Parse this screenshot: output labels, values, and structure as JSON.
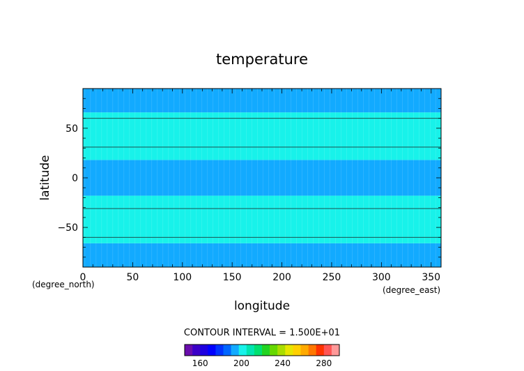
{
  "chart_data": {
    "type": "heatmap",
    "title": "temperature",
    "xlabel": "longitude",
    "ylabel": "latitude",
    "x_units": "(degree_east)",
    "y_units": "(degree_north)",
    "xlim": [
      0,
      360
    ],
    "ylim": [
      -90,
      90
    ],
    "x_ticks": [
      0,
      50,
      100,
      150,
      200,
      250,
      300,
      350
    ],
    "y_ticks": [
      -50,
      0,
      50
    ],
    "bands": [
      {
        "lat_from": -90,
        "lat_to": -66,
        "color": "#12aaff"
      },
      {
        "lat_from": -66,
        "lat_to": -18,
        "color": "#18f2ea"
      },
      {
        "lat_from": -18,
        "lat_to": 18,
        "color": "#12aaff"
      },
      {
        "lat_from": 18,
        "lat_to": 66,
        "color": "#18f2ea"
      },
      {
        "lat_from": 66,
        "lat_to": 90,
        "color": "#12aaff"
      }
    ],
    "contour_lines": [
      -60,
      -31,
      31,
      60
    ],
    "contour_interval_label": "CONTOUR INTERVAL = 1.500E+01",
    "colorbar": {
      "colors": [
        "#6a0dad",
        "#3b00c8",
        "#1e00e0",
        "#0000ff",
        "#0033ff",
        "#0066ff",
        "#12aaff",
        "#18f2ea",
        "#00e5b0",
        "#00e070",
        "#22d422",
        "#66d800",
        "#aadd00",
        "#e6e600",
        "#ffd000",
        "#ffaa00",
        "#ff7700",
        "#ff3300",
        "#ff5555",
        "#ff9999"
      ],
      "min": 145,
      "max": 295,
      "ticks": [
        160,
        200,
        240,
        280
      ]
    }
  }
}
